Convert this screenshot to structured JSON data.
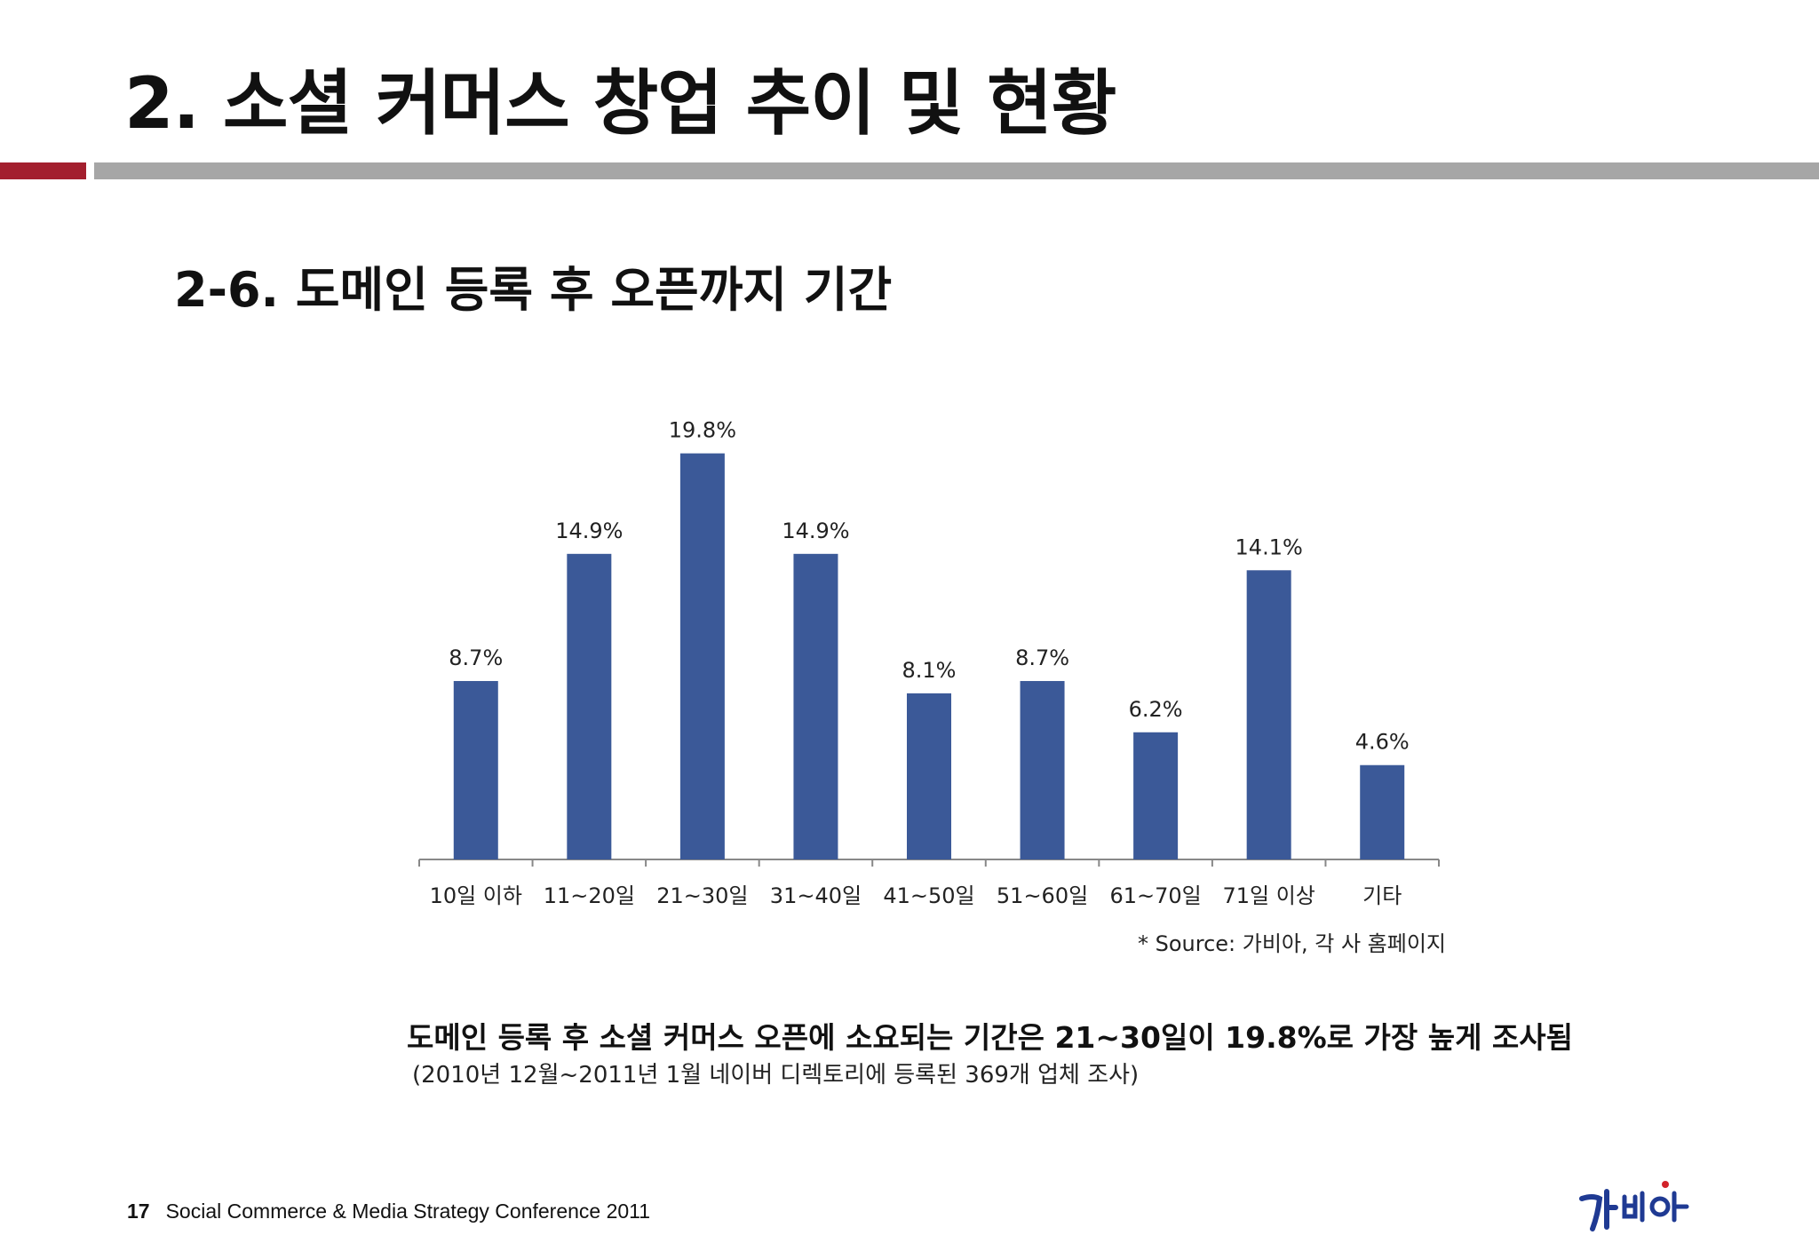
{
  "slide": {
    "title": "2. 소셜 커머스 창업 추이 및 현황",
    "subtitle": "2-6. 도메인 등록 후 오픈까지 기간",
    "source": "* Source: 가비아, 각 사 홈페이지",
    "finding": "도메인 등록 후 소셜 커머스 오픈에 소요되는 기간은 21~30일이 19.8%로 가장 높게 조사됨",
    "finding_note": "(2010년 12월~2011년 1월 네이버 디렉토리에 등록된 369개 업체 조사)",
    "page_number": "17",
    "footer_text": "Social Commerce & Media Strategy Conference 2011",
    "logo_text": "가비아",
    "colors": {
      "accent_red": "#a31f2e",
      "rule_gray": "#a6a6a6",
      "bar_blue": "#3b5998"
    }
  },
  "chart_data": {
    "type": "bar",
    "categories": [
      "10일 이하",
      "11~20일",
      "21~30일",
      "31~40일",
      "41~50일",
      "51~60일",
      "61~70일",
      "71일 이상",
      "기타"
    ],
    "values": [
      8.7,
      14.9,
      19.8,
      14.9,
      8.1,
      8.7,
      6.2,
      14.1,
      4.6
    ],
    "data_labels": [
      "8.7%",
      "14.9%",
      "19.8%",
      "14.9%",
      "8.1%",
      "8.7%",
      "6.2%",
      "14.1%",
      "4.6%"
    ],
    "unit": "%",
    "title": "",
    "xlabel": "",
    "ylabel": "",
    "ylim": [
      0,
      20
    ],
    "grid": false,
    "legend": "none",
    "color": "#3b5998"
  }
}
